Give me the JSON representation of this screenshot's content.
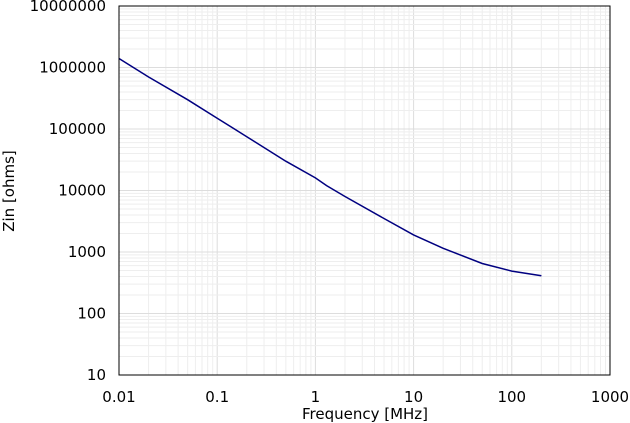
{
  "chart_data": {
    "type": "line",
    "title": "",
    "xlabel": "Frequency [MHz]",
    "ylabel": "Zin [ohms]",
    "x_scale": "log",
    "y_scale": "log",
    "xlim": [
      0.01,
      1000
    ],
    "ylim": [
      10,
      10000000
    ],
    "grid": true,
    "legend": "none",
    "x_tick_labels": [
      "0.01",
      "0.1",
      "1",
      "10",
      "100",
      "1000"
    ],
    "y_tick_labels": [
      "10",
      "100",
      "1000",
      "10000",
      "100000",
      "1000000",
      "10000000"
    ],
    "series": [
      {
        "color": "#000080",
        "x": [
          0.01,
          0.02,
          0.05,
          0.1,
          0.2,
          0.5,
          1,
          1.3,
          2,
          5,
          10,
          20,
          50,
          100,
          200
        ],
        "y": [
          1400000,
          700000,
          300000,
          150000,
          75000,
          30000,
          16000,
          12000,
          8000,
          3500,
          1900,
          1150,
          650,
          490,
          410
        ]
      }
    ]
  }
}
